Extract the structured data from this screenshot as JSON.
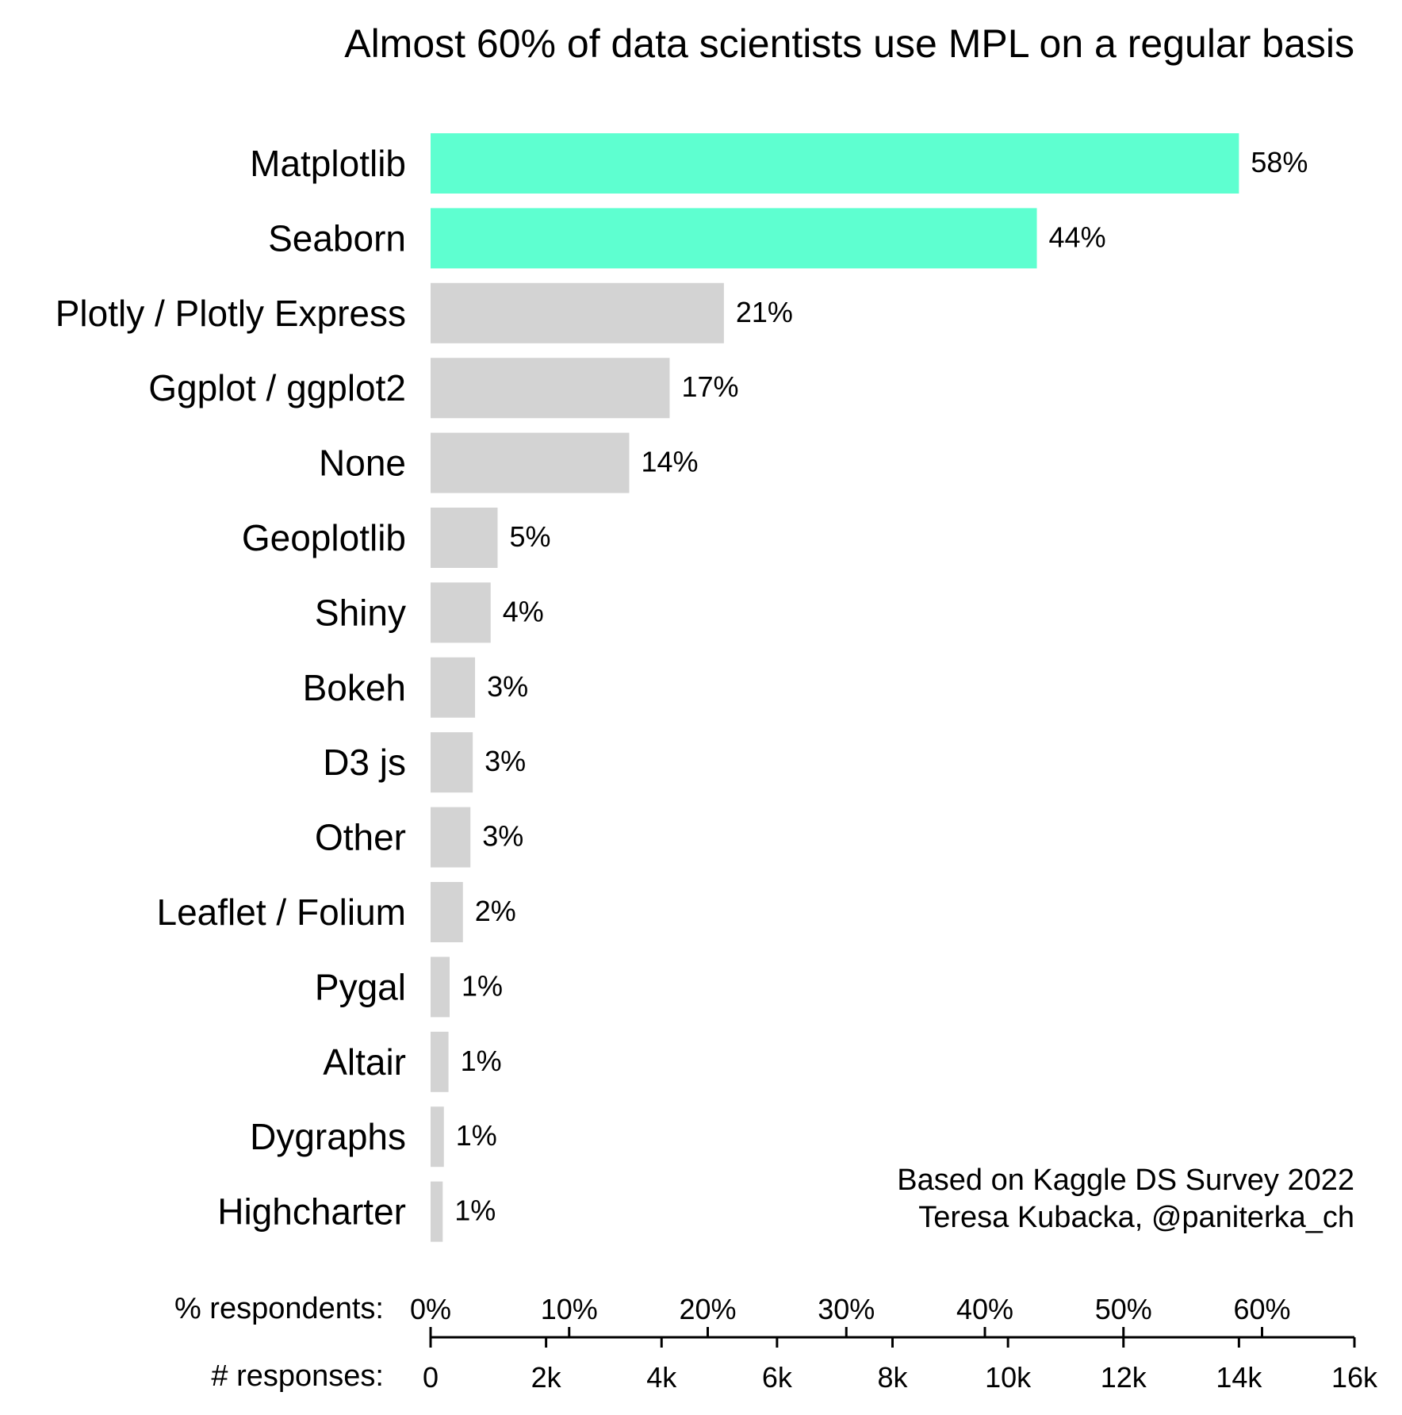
{
  "chart_data": {
    "type": "bar",
    "orientation": "horizontal",
    "title": "Almost 60% of data scientists use MPL on a regular basis",
    "categories": [
      "Matplotlib",
      "Seaborn",
      "Plotly / Plotly Express",
      "Ggplot / ggplot2",
      "None",
      "Geoplotlib",
      "Shiny",
      "Bokeh",
      "D3 js",
      "Other",
      "Leaflet / Folium",
      "Pygal",
      "Altair",
      "Dygraphs",
      "Highcharter"
    ],
    "values": [
      14000,
      10500,
      5080,
      4140,
      3440,
      1160,
      1040,
      770,
      730,
      690,
      560,
      330,
      310,
      230,
      210
    ],
    "value_labels": [
      "58%",
      "44%",
      "21%",
      "17%",
      "14%",
      "5%",
      "4%",
      "3%",
      "3%",
      "3%",
      "2%",
      "1%",
      "1%",
      "1%",
      "1%"
    ],
    "highlight_count": 2,
    "colors": {
      "highlight": "#5effd0",
      "default": "#d3d3d3",
      "axis": "#000000"
    },
    "x_axis": {
      "label": "# responses:",
      "range": [
        0,
        16000
      ],
      "ticks": [
        0,
        2000,
        4000,
        6000,
        8000,
        10000,
        12000,
        14000,
        16000
      ],
      "tick_labels": [
        "0",
        "2k",
        "4k",
        "6k",
        "8k",
        "10k",
        "12k",
        "14k",
        "16k"
      ]
    },
    "secondary_axis": {
      "label": "% respondents:",
      "ticks": [
        0,
        10,
        20,
        30,
        40,
        50,
        60
      ],
      "tick_labels": [
        "0%",
        "10%",
        "20%",
        "30%",
        "40%",
        "50%",
        "60%"
      ],
      "responses_per_percent": 240
    },
    "annotation": [
      "Based on Kaggle DS Survey 2022",
      "Teresa Kubacka, @paniterka_ch"
    ],
    "grid": false,
    "legend": "none"
  }
}
